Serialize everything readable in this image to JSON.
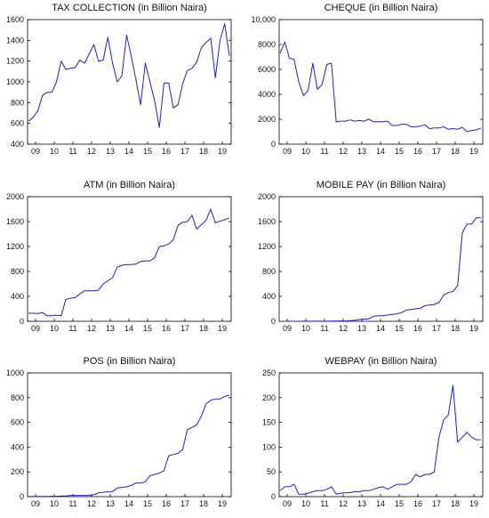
{
  "figure": {
    "color": "#1f1fd0",
    "x_tick_labels": [
      "09",
      "10",
      "11",
      "12",
      "13",
      "14",
      "15",
      "16",
      "17",
      "18",
      "19"
    ]
  },
  "chart_data": [
    {
      "type": "line",
      "title": "TAX COLLECTION (in Billion Naira)",
      "xlabel": "",
      "ylabel": "",
      "x_unit": "quarter (2008Q4–2019Q4)",
      "xlim": [
        "2008Q4",
        "2019Q4"
      ],
      "ylim": [
        400,
        1600
      ],
      "y_ticks": [
        "400",
        "600",
        "800",
        "1000",
        "1200",
        "1400",
        "1600"
      ],
      "series": [
        {
          "values": [
            620,
            660,
            720,
            870,
            900,
            900,
            1000,
            1200,
            1120,
            1130,
            1140,
            1210,
            1180,
            1270,
            1360,
            1200,
            1210,
            1430,
            1180,
            1000,
            1060,
            1450,
            1250,
            1020,
            780,
            1180,
            1000,
            820,
            560,
            990,
            990,
            750,
            780,
            980,
            1110,
            1130,
            1190,
            1330,
            1380,
            1420,
            1040,
            1400,
            1560,
            1250
          ]
        }
      ]
    },
    {
      "type": "line",
      "title": "CHEQUE (in Billion Naira)",
      "xlabel": "",
      "ylabel": "",
      "x_unit": "quarter (2008Q4–2019Q4)",
      "xlim": [
        "2008Q4",
        "2019Q4"
      ],
      "ylim": [
        0,
        10000
      ],
      "y_ticks": [
        "0",
        "2000",
        "4000",
        "6000",
        "8000",
        "10,000"
      ],
      "series": [
        {
          "values": [
            7300,
            8200,
            6900,
            6800,
            5000,
            3900,
            4300,
            6500,
            4400,
            4800,
            6400,
            6500,
            1800,
            1850,
            1850,
            1950,
            1850,
            1900,
            1850,
            2000,
            1800,
            1800,
            1800,
            1850,
            1500,
            1500,
            1600,
            1600,
            1400,
            1400,
            1450,
            1550,
            1250,
            1300,
            1300,
            1400,
            1200,
            1250,
            1200,
            1350,
            1000,
            1100,
            1150,
            1300
          ]
        }
      ]
    },
    {
      "type": "line",
      "title": "ATM (in Billion Naira)",
      "xlabel": "",
      "ylabel": "",
      "x_unit": "quarter (2008Q4–2019Q4)",
      "xlim": [
        "2008Q4",
        "2019Q4"
      ],
      "ylim": [
        0,
        2000
      ],
      "y_ticks": [
        "0",
        "400",
        "800",
        "1200",
        "1600",
        "2000"
      ],
      "series": [
        {
          "values": [
            130,
            130,
            125,
            140,
            90,
            90,
            100,
            90,
            350,
            370,
            380,
            440,
            490,
            490,
            490,
            500,
            600,
            650,
            700,
            870,
            900,
            910,
            910,
            920,
            960,
            970,
            970,
            1020,
            1200,
            1210,
            1240,
            1310,
            1540,
            1590,
            1600,
            1700,
            1480,
            1550,
            1620,
            1800,
            1580,
            1610,
            1630,
            1660
          ]
        }
      ]
    },
    {
      "type": "line",
      "title": "MOBILE PAY (in Billion Naira)",
      "xlabel": "",
      "ylabel": "",
      "x_unit": "quarter (2008Q4–2019Q4)",
      "xlim": [
        "2008Q4",
        "2019Q4"
      ],
      "ylim": [
        0,
        2000
      ],
      "y_ticks": [
        "0",
        "400",
        "800",
        "1200",
        "1600",
        "2000"
      ],
      "series": [
        {
          "values": [
            0,
            0,
            0,
            0,
            0,
            1,
            1,
            1,
            1,
            2,
            2,
            3,
            4,
            5,
            6,
            10,
            15,
            30,
            35,
            40,
            80,
            90,
            90,
            100,
            110,
            120,
            140,
            180,
            190,
            200,
            210,
            250,
            260,
            270,
            300,
            420,
            460,
            480,
            570,
            1420,
            1560,
            1560,
            1660,
            1660
          ]
        }
      ]
    },
    {
      "type": "line",
      "title": "POS (in Billion Naira)",
      "xlabel": "",
      "ylabel": "",
      "x_unit": "quarter (2008Q4–2019Q4)",
      "xlim": [
        "2008Q4",
        "2019Q4"
      ],
      "ylim": [
        0,
        1000
      ],
      "y_ticks": [
        "0",
        "200",
        "400",
        "600",
        "800",
        "1000"
      ],
      "series": [
        {
          "values": [
            1,
            1,
            2,
            2,
            2,
            3,
            3,
            5,
            6,
            10,
            10,
            10,
            10,
            10,
            15,
            30,
            35,
            40,
            40,
            70,
            75,
            80,
            90,
            110,
            110,
            120,
            170,
            180,
            190,
            210,
            330,
            340,
            350,
            380,
            540,
            560,
            580,
            650,
            750,
            780,
            790,
            790,
            810,
            820
          ]
        }
      ]
    },
    {
      "type": "line",
      "title": "WEBPAY (in Billion Naira)",
      "xlabel": "",
      "ylabel": "",
      "x_unit": "quarter (2008Q4–2019Q4)",
      "xlim": [
        "2008Q4",
        "2019Q4"
      ],
      "ylim": [
        0,
        250
      ],
      "y_ticks": [
        "0",
        "50",
        "100",
        "150",
        "200",
        "250"
      ],
      "series": [
        {
          "values": [
            12,
            20,
            20,
            25,
            5,
            5,
            7,
            10,
            12,
            12,
            15,
            20,
            5,
            7,
            8,
            8,
            10,
            10,
            12,
            12,
            15,
            18,
            20,
            15,
            20,
            25,
            25,
            25,
            30,
            45,
            40,
            45,
            45,
            50,
            120,
            155,
            165,
            225,
            110,
            120,
            130,
            120,
            115,
            115
          ]
        }
      ]
    }
  ]
}
